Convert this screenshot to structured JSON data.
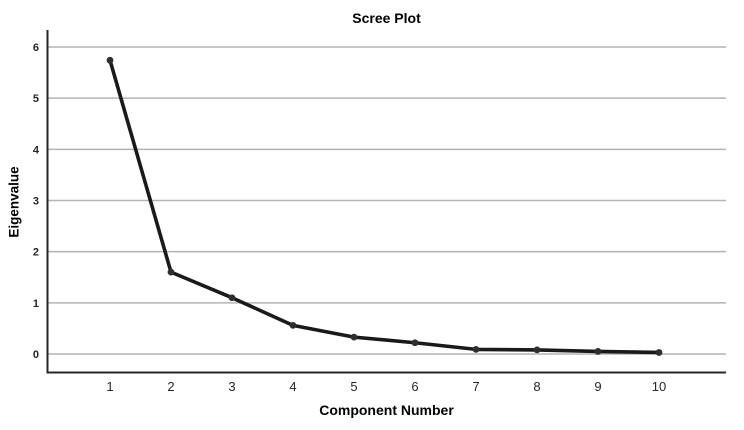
{
  "chart_data": {
    "type": "line",
    "title": "Scree Plot",
    "xlabel": "Component Number",
    "ylabel": "Eigenvalue",
    "categories": [
      "1",
      "2",
      "3",
      "4",
      "5",
      "6",
      "7",
      "8",
      "9",
      "10"
    ],
    "series": [
      {
        "name": "Eigenvalue",
        "values": [
          5.74,
          1.6,
          1.1,
          0.56,
          0.33,
          0.22,
          0.09,
          0.08,
          0.05,
          0.03
        ]
      }
    ],
    "y_ticks": [
      0,
      1,
      2,
      3,
      4,
      5,
      6
    ],
    "ylim": [
      -0.37,
      6.35
    ],
    "xlim_categories": [
      1,
      10
    ],
    "grid": "horizontal",
    "legend": "none",
    "marker": "filled-circle",
    "colors": {
      "line": "#1a1a1a",
      "marker": "#2e2e2e",
      "gridline": "#b3b3b3",
      "axis": "#262626",
      "text": "#000000",
      "background": "#ffffff"
    }
  }
}
